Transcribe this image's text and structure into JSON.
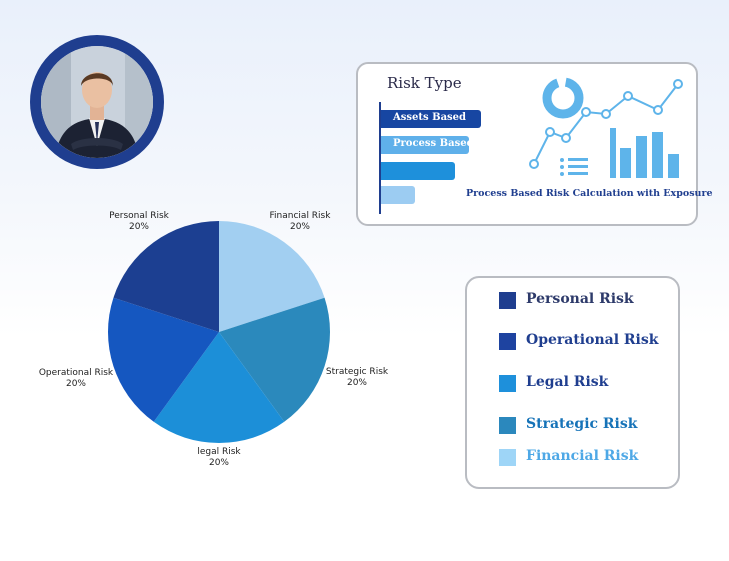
{
  "avatar": {
    "alt": "businessman portrait"
  },
  "risk_card": {
    "title": "Risk Type",
    "bars": [
      {
        "label": "Assets Based",
        "color": "#1746a2",
        "level": 1.0
      },
      {
        "label": "Process Based",
        "color": "#5fb0ea",
        "level": 0.88
      },
      {
        "label": "",
        "color": "#1e90db",
        "level": 0.74
      },
      {
        "label": "",
        "color": "#9cccf2",
        "level": 0.34
      }
    ],
    "caption": "Process Based Risk Calculation with Exposure"
  },
  "legend": [
    {
      "label": "Personal Risk",
      "swatch": "#1f3e8f",
      "text_color": "#2d3a6a"
    },
    {
      "label": "Operational Risk",
      "swatch": "#1e43a0",
      "text_color": "#1f3e8f"
    },
    {
      "label": "Legal Risk",
      "swatch": "#1e90db",
      "text_color": "#1f3e8f"
    },
    {
      "label": "Strategic Risk",
      "swatch": "#2b88bd",
      "text_color": "#1673b8"
    },
    {
      "label": "Financial Risk",
      "swatch": "#9ed5f7",
      "text_color": "#4ea8e6"
    }
  ],
  "chart_data": {
    "type": "pie",
    "categories": [
      "Financial Risk",
      "Strategic Risk",
      "legal Risk",
      "Operational Risk",
      "Personal Risk"
    ],
    "values": [
      20,
      20,
      20,
      20,
      20
    ],
    "percent_labels": [
      "20%",
      "20%",
      "20%",
      "20%",
      "20%"
    ],
    "colors": [
      "#a2cff1",
      "#2b89bc",
      "#1c8fd8",
      "#1557c0",
      "#1c3f91"
    ],
    "start": "12 o'clock, clockwise"
  }
}
